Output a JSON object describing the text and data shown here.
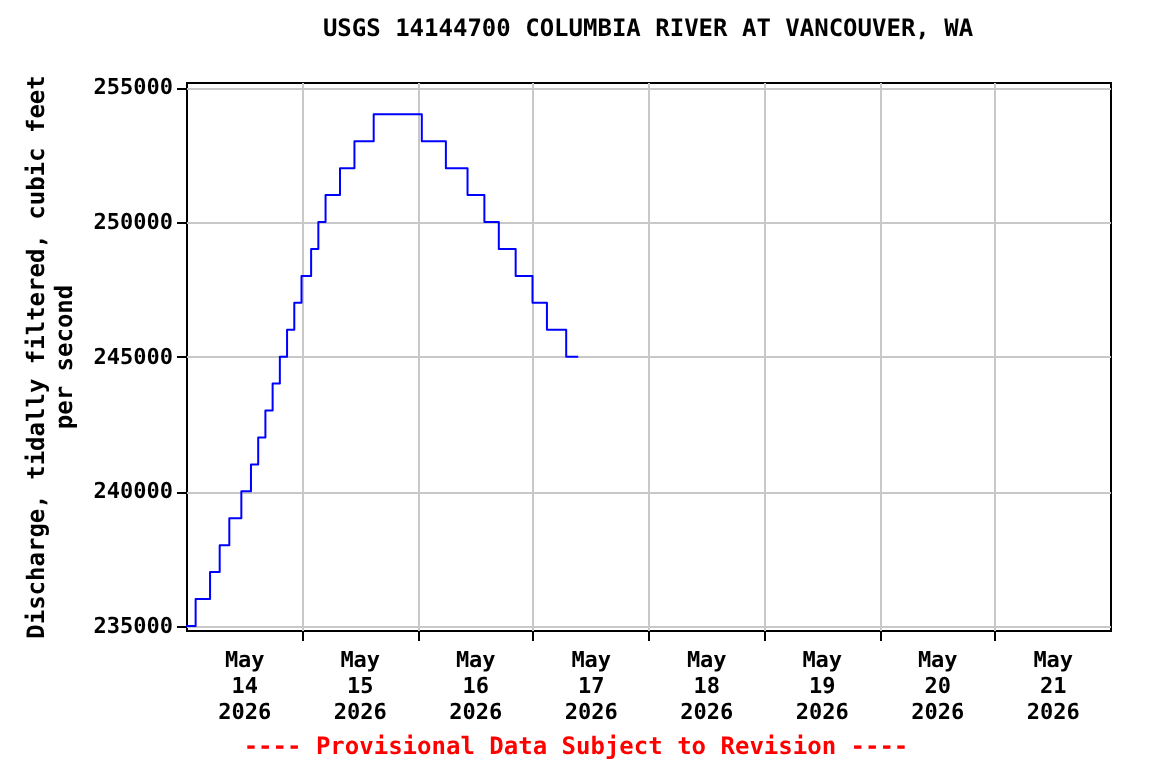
{
  "chart_data": {
    "type": "step",
    "title": "USGS 14144700 COLUMBIA RIVER AT VANCOUVER, WA",
    "ylabel": "Discharge, tidally filtered, cubic feet per second",
    "annotations": [
      "---- Provisional Data Subject to Revision ----"
    ],
    "x": [
      "2026-05-14T00:00",
      "2026-05-14T02:00",
      "2026-05-14T05:00",
      "2026-05-14T07:00",
      "2026-05-14T09:00",
      "2026-05-14T11:30",
      "2026-05-14T13:30",
      "2026-05-14T15:00",
      "2026-05-14T16:30",
      "2026-05-14T18:00",
      "2026-05-14T19:30",
      "2026-05-14T21:00",
      "2026-05-14T22:30",
      "2026-05-15T00:00",
      "2026-05-15T02:00",
      "2026-05-15T03:30",
      "2026-05-15T05:00",
      "2026-05-15T08:00",
      "2026-05-15T11:00",
      "2026-05-15T15:00",
      "2026-05-16T01:00",
      "2026-05-16T06:00",
      "2026-05-16T10:30",
      "2026-05-16T14:00",
      "2026-05-16T17:00",
      "2026-05-16T20:30",
      "2026-05-17T00:00",
      "2026-05-17T03:00",
      "2026-05-17T07:00",
      "2026-05-17T09:30"
    ],
    "series": [
      {
        "color": "#0000ff",
        "values": [
          235000,
          236000,
          237000,
          238000,
          239000,
          240000,
          241000,
          242000,
          243000,
          244000,
          245000,
          246000,
          247000,
          248000,
          249000,
          250000,
          251000,
          252000,
          253000,
          254000,
          253000,
          252000,
          251000,
          250000,
          249000,
          248000,
          247000,
          246000,
          245000,
          245000
        ]
      }
    ],
    "xlim": [
      "2026-05-14T00:00",
      "2026-05-22T00:00"
    ],
    "xticks": [
      {
        "value": "2026-05-14T12:00",
        "label": "May 14 2026"
      },
      {
        "value": "2026-05-15T00:00",
        "label": null
      },
      {
        "value": "2026-05-15T12:00",
        "label": "May 15 2026"
      },
      {
        "value": "2026-05-16T00:00",
        "label": null
      },
      {
        "value": "2026-05-16T12:00",
        "label": "May 16 2026"
      },
      {
        "value": "2026-05-17T00:00",
        "label": null
      },
      {
        "value": "2026-05-17T12:00",
        "label": "May 17 2026"
      },
      {
        "value": "2026-05-18T00:00",
        "label": null
      },
      {
        "value": "2026-05-18T12:00",
        "label": "May 18 2026"
      },
      {
        "value": "2026-05-19T00:00",
        "label": null
      },
      {
        "value": "2026-05-19T12:00",
        "label": "May 19 2026"
      },
      {
        "value": "2026-05-20T00:00",
        "label": null
      },
      {
        "value": "2026-05-20T12:00",
        "label": "May 20 2026"
      },
      {
        "value": "2026-05-21T00:00",
        "label": null
      },
      {
        "value": "2026-05-21T12:00",
        "label": "May 21 2026"
      }
    ],
    "ylim": [
      234850,
      255200
    ],
    "yticks": [
      235000,
      240000,
      245000,
      250000,
      255000
    ],
    "grid": true
  }
}
